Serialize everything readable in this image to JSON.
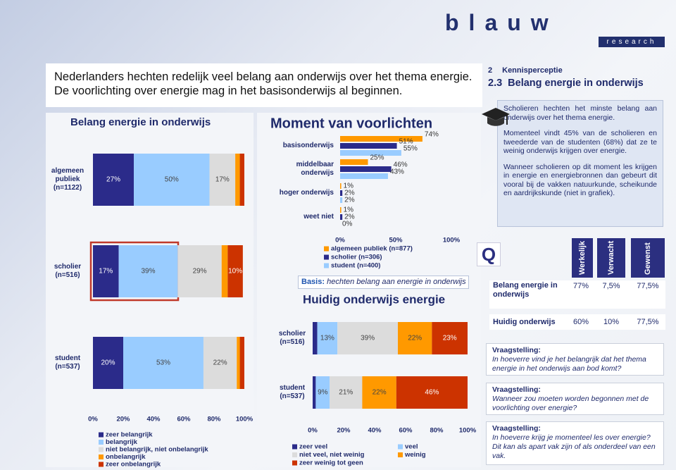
{
  "header": {
    "logo": "blauw",
    "logo_sub": "research",
    "title": "Nederlanders hechten redelijk veel belang aan onderwijs over het thema energie. De voorlichting over energie mag in het basisonderwijs al beginnen.",
    "section_number": "2",
    "section": "Kennisperceptie",
    "subsection_number": "2.3",
    "subsection": "Belang energie in onderwijs"
  },
  "sidebar": {
    "paragraphs": [
      "Scholieren hechten het minste belang aan onderwijs over het thema energie.",
      "Momenteel vindt 45% van de scholieren en tweederde van de studenten (68%) dat ze te weinig onderwijs krijgen over energie.",
      "Wanneer scholieren op dit moment les krijgen in energie en energiebronnen dan gebeurt dit vooral bij de vakken natuurkunde, scheikunde en aardrijkskunde (niet in grafiek)."
    ]
  },
  "chart_data": [
    {
      "type": "bar",
      "orientation": "horizontal",
      "stacked": true,
      "title": "Belang energie in onderwijs",
      "categories": [
        "algemeen publiek (n=1122)",
        "scholier (n=516)",
        "student (n=537)"
      ],
      "series": [
        {
          "name": "zeer belangrijk",
          "color": "#2b2b8a",
          "values": [
            27,
            17,
            20
          ],
          "value_labels": [
            "27%",
            "17%",
            "20%"
          ]
        },
        {
          "name": "belangrijk",
          "color": "#99ccff",
          "values": [
            50,
            39,
            53
          ],
          "value_labels": [
            "50%",
            "39%",
            "53%"
          ]
        },
        {
          "name": "niet belangrijk, niet onbelangrijk",
          "color": "#dcdcdc",
          "values": [
            17,
            29,
            22
          ],
          "value_labels": [
            "17%",
            "29%",
            "22%"
          ]
        },
        {
          "name": "onbelangrijk",
          "color": "#ff9900",
          "values": [
            3,
            4,
            2
          ]
        },
        {
          "name": "zeer onbelangrijk",
          "color": "#cc3300",
          "values": [
            3,
            10,
            3
          ],
          "value_labels": [
            null,
            "10%",
            null
          ]
        }
      ],
      "xlim": [
        0,
        100
      ],
      "xticks": [
        {
          "value": 0,
          "label": "0%"
        },
        {
          "value": 20,
          "label": "20%"
        },
        {
          "value": 40,
          "label": "40%"
        },
        {
          "value": 60,
          "label": "60%"
        },
        {
          "value": 80,
          "label": "80%"
        },
        {
          "value": 100,
          "label": "100%"
        }
      ]
    },
    {
      "type": "bar",
      "orientation": "horizontal",
      "stacked": false,
      "title": "Moment van voorlichten",
      "categories": [
        "basisonderwijs",
        "middelbaar onderwijs",
        "hoger onderwijs",
        "weet niet"
      ],
      "series": [
        {
          "name": "algemeen publiek (n=877)",
          "color": "#ff9900",
          "values": [
            74,
            25,
            1,
            1
          ],
          "value_labels": [
            "74%",
            "25%",
            "1%",
            "1%"
          ]
        },
        {
          "name": "scholier (n=306)",
          "color": "#2b2b8a",
          "values": [
            51,
            46,
            2,
            2
          ],
          "value_labels": [
            "51%",
            "46%",
            "2%",
            "2%"
          ]
        },
        {
          "name": "student (n=400)",
          "color": "#99ccff",
          "values": [
            55,
            43,
            2,
            0
          ],
          "value_labels": [
            "55%",
            "43%",
            "2%",
            "0%"
          ]
        }
      ],
      "xlim": [
        0,
        100
      ],
      "xticks": [
        {
          "value": 0,
          "label": "0%"
        },
        {
          "value": 50,
          "label": "50%"
        },
        {
          "value": 100,
          "label": "100%"
        }
      ]
    },
    {
      "type": "bar",
      "orientation": "horizontal",
      "stacked": true,
      "title": "Huidig onderwijs energie",
      "categories": [
        "scholier (n=516)",
        "student (n=537)"
      ],
      "series": [
        {
          "name": "zeer veel",
          "color": "#2b2b8a",
          "values": [
            3,
            2
          ]
        },
        {
          "name": "veel",
          "color": "#99ccff",
          "values": [
            13,
            9
          ],
          "value_labels": [
            "13%",
            "9%"
          ]
        },
        {
          "name": "niet veel, niet weinig",
          "color": "#dcdcdc",
          "values": [
            39,
            21
          ],
          "value_labels": [
            "39%",
            "21%"
          ]
        },
        {
          "name": "weinig",
          "color": "#ff9900",
          "values": [
            22,
            22
          ],
          "value_labels": [
            "22%",
            "22%"
          ]
        },
        {
          "name": "zeer weinig tot geen",
          "color": "#cc3300",
          "values": [
            23,
            46
          ],
          "value_labels": [
            "23%",
            "46%"
          ]
        }
      ],
      "xlim": [
        0,
        100
      ],
      "xticks": [
        {
          "value": 0,
          "label": "0%"
        },
        {
          "value": 20,
          "label": "20%"
        },
        {
          "value": 40,
          "label": "40%"
        },
        {
          "value": 60,
          "label": "60%"
        },
        {
          "value": 80,
          "label": "80%"
        },
        {
          "value": 100,
          "label": "100%"
        }
      ]
    }
  ],
  "note": {
    "label": "Basis:",
    "text": "hechten belang aan energie in onderwijs"
  },
  "table": {
    "icon": "Q",
    "columns": [
      "Werkelijk",
      "Verwacht",
      "Gewenst"
    ],
    "rows": [
      {
        "label": "Belang energie in onderwijs",
        "cells": [
          "77%",
          "7,5%",
          "77,5%"
        ]
      },
      {
        "label": "Huidig onderwijs",
        "cells": [
          "60%",
          "10%",
          "77,5%"
        ]
      }
    ]
  },
  "questions": [
    {
      "label": "Vraagstelling:",
      "text": "In hoeverre vind je het belangrijk dat het thema energie in het onderwijs aan bod komt?"
    },
    {
      "label": "Vraagstelling:",
      "text": "Wanneer zou moeten worden begonnen met de voorlichting over energie?"
    },
    {
      "label": "Vraagstelling:",
      "text": "In hoeverre krijg je momenteel les over energie? Dit kan als apart vak zijn of als onderdeel van een vak."
    }
  ]
}
